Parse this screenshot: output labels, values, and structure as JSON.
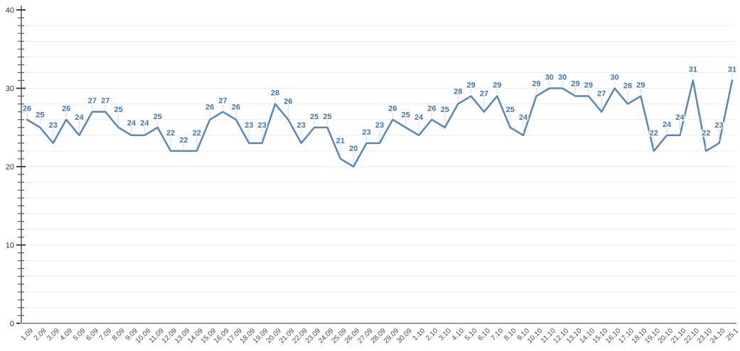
{
  "chart_data": {
    "type": "line",
    "title": "",
    "xlabel": "",
    "ylabel": "",
    "legend": "none",
    "grid": "horizontal",
    "ylim": [
      0,
      40
    ],
    "y_tick_labels": [
      "0",
      "10",
      "20",
      "30",
      "40"
    ],
    "y_major_step": 10,
    "y_minor_step": 1,
    "grid_step": 2,
    "categories": [
      "1.09",
      "2.09",
      "3.09",
      "4.09",
      "5.09",
      "6.09",
      "7.09",
      "8.09",
      "9.09",
      "10.09",
      "11.09",
      "12.09",
      "13.09",
      "14.09",
      "15.09",
      "16.09",
      "17.09",
      "18.09",
      "19.09",
      "20.09",
      "21.09",
      "22.09",
      "23.09",
      "24.09",
      "25.09",
      "26.09",
      "27.09",
      "28.09",
      "29.09",
      "30.09",
      "1.10",
      "2.10",
      "3.10",
      "4.10",
      "5.10",
      "6.10",
      "7.10",
      "8.10",
      "9.10",
      "10.10",
      "11.10",
      "12.10",
      "13.10",
      "14.10",
      "15.10",
      "16.10",
      "17.10",
      "18.10",
      "19.10",
      "20.10",
      "21.10",
      "22.10",
      "23.10",
      "24.10",
      "25.1"
    ],
    "values": [
      26,
      25,
      23,
      26,
      24,
      27,
      27,
      25,
      24,
      24,
      25,
      22,
      22,
      22,
      26,
      27,
      26,
      23,
      23,
      28,
      26,
      23,
      25,
      25,
      21,
      20,
      23,
      23,
      26,
      25,
      24,
      26,
      25,
      28,
      29,
      27,
      29,
      25,
      24,
      29,
      30,
      30,
      29,
      29,
      27,
      30,
      28,
      29,
      22,
      24,
      24,
      31,
      22,
      23,
      31
    ],
    "colors": {
      "line": "#5b86bd",
      "data_label": "#3f74b5",
      "grid": "#ebebeb",
      "axis": "#555555",
      "x_axis_line": "#9a9a9a",
      "y_tick_label": "#333333",
      "x_tick_label": "#4a4a4a",
      "leader": "#d9d9d9",
      "background": "#ffffff"
    }
  }
}
